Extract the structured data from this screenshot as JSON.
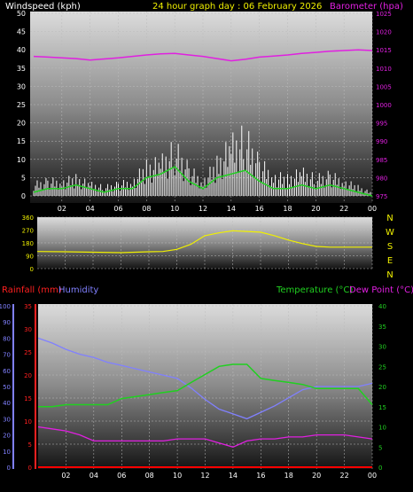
{
  "header": {
    "wind_label": "Windspeed (kph)",
    "title": "24 hour graph day : 06 February 2026",
    "baro_label": "Barometer (hpa)"
  },
  "x_ticks": [
    "02",
    "04",
    "06",
    "08",
    "10",
    "12",
    "14",
    "16",
    "18",
    "20",
    "22",
    "00"
  ],
  "colors": {
    "background": "#000000",
    "wind_axis_text": "#ffffff",
    "baro": "#e020e0",
    "gust": "#ffffff",
    "wind_avg": "#20d020",
    "direction": "#f0f000",
    "direction_axis": "#f0f000",
    "compass": "#f0f000",
    "rain": "#ff0000",
    "rain_axis": "#ff2020",
    "humidity": "#8080ff",
    "humidity_axis": "#8080ff",
    "temperature": "#20d020",
    "temperature_axis": "#20d020",
    "dewpoint": "#e020e0"
  },
  "compass": [
    "N",
    "W",
    "S",
    "E",
    "N"
  ],
  "labels": {
    "rain": "Rainfall (mm)",
    "humidity": "Humidity",
    "temperature": "Temperature (°C)",
    "dewpoint": "Dew Point (°C)"
  },
  "chart_data": [
    {
      "type": "line",
      "name": "wind_barometer",
      "title": "24 hour graph day : 06 February 2026",
      "xlabel": "",
      "x_ticks": [
        "02",
        "04",
        "06",
        "08",
        "10",
        "12",
        "14",
        "16",
        "18",
        "20",
        "22",
        "00"
      ],
      "left_axis": {
        "label": "Windspeed (kph)",
        "range": [
          0,
          50
        ],
        "ticks": [
          0,
          5,
          10,
          15,
          20,
          25,
          30,
          35,
          40,
          45,
          50
        ]
      },
      "right_axis": {
        "label": "Barometer (hpa)",
        "range": [
          975,
          1025
        ],
        "ticks": [
          975,
          980,
          985,
          990,
          995,
          1000,
          1005,
          1010,
          1015,
          1020,
          1025
        ]
      },
      "grid": true,
      "hours": [
        0,
        1,
        2,
        3,
        4,
        5,
        6,
        7,
        8,
        9,
        10,
        11,
        12,
        13,
        14,
        15,
        16,
        17,
        18,
        19,
        20,
        21,
        22,
        23,
        24
      ],
      "series": [
        {
          "name": "Barometer",
          "axis": "right",
          "values": [
            1013.2,
            1013.0,
            1012.8,
            1012.6,
            1012.2,
            1012.5,
            1012.8,
            1013.2,
            1013.6,
            1013.9,
            1014.0,
            1013.6,
            1013.2,
            1012.6,
            1012.0,
            1012.4,
            1013.0,
            1013.3,
            1013.6,
            1014.0,
            1014.3,
            1014.6,
            1014.8,
            1015.0,
            1014.8
          ]
        },
        {
          "name": "Wind gust",
          "axis": "left",
          "values": [
            4,
            5,
            5,
            6,
            4,
            3,
            4,
            5,
            10,
            11,
            16,
            9,
            5,
            11,
            17,
            20,
            11,
            7,
            6,
            8,
            6,
            7,
            5,
            3,
            1
          ]
        },
        {
          "name": "Wind average",
          "axis": "left",
          "values": [
            1,
            2,
            2,
            3,
            2,
            1,
            2,
            2,
            5,
            6,
            8,
            4,
            2,
            5,
            6,
            7,
            4,
            2,
            2,
            3,
            2,
            3,
            2,
            1,
            0
          ]
        }
      ]
    },
    {
      "type": "line",
      "name": "wind_direction",
      "x_ticks": [
        "02",
        "04",
        "06",
        "08",
        "10",
        "12",
        "14",
        "16",
        "18",
        "20",
        "22",
        "00"
      ],
      "y_axis": {
        "range": [
          0,
          360
        ],
        "ticks": [
          0,
          90,
          180,
          270,
          360
        ]
      },
      "compass": [
        "N",
        "W",
        "S",
        "E",
        "N"
      ],
      "hours": [
        0,
        2,
        4,
        6,
        8,
        9,
        10,
        11,
        12,
        13,
        14,
        15,
        16,
        17,
        18,
        19,
        20,
        21,
        22,
        23,
        24
      ],
      "series": [
        {
          "name": "Direction",
          "values": [
            120,
            118,
            115,
            112,
            118,
            120,
            135,
            170,
            230,
            250,
            265,
            260,
            255,
            230,
            200,
            175,
            155,
            150,
            150,
            150,
            150
          ]
        }
      ]
    },
    {
      "type": "line",
      "name": "temp_humidity_rain",
      "x_ticks": [
        "02",
        "04",
        "06",
        "08",
        "10",
        "12",
        "14",
        "16",
        "18",
        "20",
        "22",
        "00"
      ],
      "rain_axis": {
        "label": "Rainfall (mm)",
        "range": [
          0,
          35
        ],
        "ticks": [
          0,
          5,
          10,
          15,
          20,
          25,
          30,
          35
        ]
      },
      "humidity_axis": {
        "label": "Humidity",
        "range": [
          0,
          100
        ],
        "ticks": [
          0,
          10,
          20,
          30,
          40,
          50,
          60,
          70,
          80,
          90,
          100
        ]
      },
      "temp_axis": {
        "label": "Temperature (°C)",
        "range": [
          0,
          40
        ],
        "ticks": [
          0,
          5,
          10,
          15,
          20,
          25,
          30,
          35,
          40
        ]
      },
      "dew_axis": {
        "label": "Dew Point (°C)"
      },
      "grid": true,
      "hours": [
        0,
        1,
        2,
        3,
        4,
        5,
        6,
        7,
        8,
        9,
        10,
        11,
        12,
        13,
        14,
        15,
        16,
        17,
        18,
        19,
        20,
        21,
        22,
        23,
        24
      ],
      "series": [
        {
          "name": "Humidity",
          "axis": "humidity",
          "values": [
            80,
            77,
            73,
            70,
            68,
            65,
            63,
            61,
            59,
            57,
            55,
            49,
            42,
            36,
            33,
            30,
            34,
            38,
            43,
            48,
            50,
            50,
            50,
            50,
            52
          ]
        },
        {
          "name": "Temperature",
          "axis": "temp",
          "values": [
            15,
            15,
            15.5,
            15.5,
            15.5,
            15.5,
            17,
            17.5,
            18,
            18.5,
            19,
            21,
            23,
            25,
            25.5,
            25.5,
            22,
            21.5,
            21,
            20.5,
            19.5,
            19.5,
            19.5,
            19.5,
            15.5
          ]
        },
        {
          "name": "Dew Point",
          "axis": "temp",
          "values": [
            10,
            9.5,
            9,
            8,
            6.5,
            6.5,
            6.5,
            6.5,
            6.5,
            6.5,
            7,
            7,
            7,
            6,
            5,
            6.5,
            7,
            7,
            7.5,
            7.5,
            8,
            8,
            8,
            7.5,
            7
          ]
        },
        {
          "name": "Rainfall",
          "axis": "rain",
          "values": [
            0,
            0,
            0,
            0,
            0,
            0,
            0,
            0,
            0,
            0,
            0,
            0,
            0,
            0,
            0,
            0,
            0,
            0,
            0,
            0,
            0,
            0,
            0,
            0,
            0
          ]
        }
      ]
    }
  ]
}
